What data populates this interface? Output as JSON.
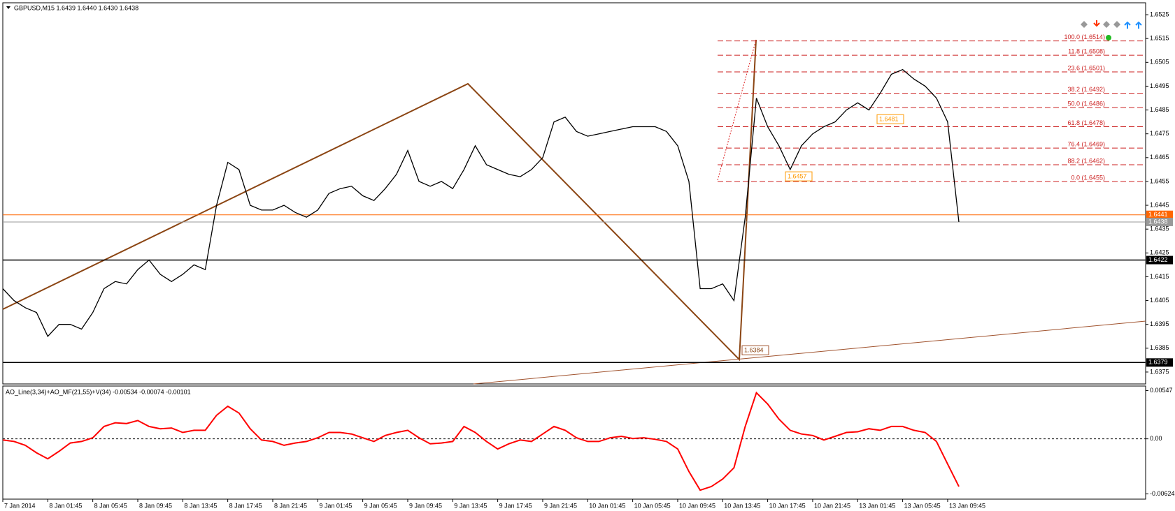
{
  "chart_data": [
    {
      "type": "line",
      "title": "GBPUSD,M15 1.6439 1.6440 1.6430 1.6438",
      "x": [
        0,
        1,
        2,
        3,
        4,
        5,
        6,
        7,
        8,
        9,
        10,
        11,
        12,
        13,
        14,
        15,
        16,
        17,
        18,
        19,
        20,
        21,
        22,
        23,
        24,
        25,
        26,
        27,
        28,
        29,
        30,
        31,
        32,
        33,
        34,
        35,
        36,
        37,
        38,
        39,
        40,
        41,
        42,
        43,
        44,
        45,
        46,
        47,
        48,
        49,
        50,
        51,
        52,
        53,
        54,
        55,
        56,
        57,
        58,
        59,
        60,
        61,
        62,
        63,
        64,
        65,
        66,
        67,
        68,
        69,
        70,
        71,
        72,
        73,
        74,
        75,
        76,
        77,
        78,
        79,
        80,
        81,
        82,
        83,
        84,
        85
      ],
      "values": [
        1.641,
        1.6405,
        1.6402,
        1.64,
        1.639,
        1.6395,
        1.6395,
        1.6393,
        1.64,
        1.641,
        1.6413,
        1.6412,
        1.6418,
        1.6422,
        1.6416,
        1.6413,
        1.6416,
        1.642,
        1.6418,
        1.6445,
        1.6463,
        1.646,
        1.6445,
        1.6443,
        1.6443,
        1.6445,
        1.6442,
        1.644,
        1.6443,
        1.645,
        1.6452,
        1.6453,
        1.6449,
        1.6447,
        1.6452,
        1.6458,
        1.6468,
        1.6455,
        1.6453,
        1.6455,
        1.6452,
        1.646,
        1.647,
        1.6462,
        1.646,
        1.6458,
        1.6457,
        1.646,
        1.6465,
        1.648,
        1.6482,
        1.6476,
        1.6474,
        1.6475,
        1.6476,
        1.6477,
        1.6478,
        1.6478,
        1.6478,
        1.6476,
        1.647,
        1.6455,
        1.641,
        1.641,
        1.6412,
        1.6405,
        1.644,
        1.649,
        1.6478,
        1.647,
        1.646,
        1.647,
        1.6475,
        1.6478,
        1.648,
        1.6485,
        1.6488,
        1.6485,
        1.6492,
        1.65,
        1.6502,
        1.6498,
        1.6495,
        1.649,
        1.648,
        1.6438
      ],
      "color": "#000000",
      "xlim": [
        0,
        101.6
      ],
      "xticks": [
        {
          "value": 0,
          "label": "7 Jan 2014"
        },
        {
          "value": 4,
          "label": "8 Jan 01:45"
        },
        {
          "value": 8,
          "label": "8 Jan 05:45"
        },
        {
          "value": 12,
          "label": "8 Jan 09:45"
        },
        {
          "value": 16,
          "label": "8 Jan 13:45"
        },
        {
          "value": 20,
          "label": "8 Jan 17:45"
        },
        {
          "value": 24,
          "label": "8 Jan 21:45"
        },
        {
          "value": 28,
          "label": "9 Jan 01:45"
        },
        {
          "value": 32,
          "label": "9 Jan 05:45"
        },
        {
          "value": 36,
          "label": "9 Jan 09:45"
        },
        {
          "value": 40,
          "label": "9 Jan 13:45"
        },
        {
          "value": 44,
          "label": "9 Jan 17:45"
        },
        {
          "value": 48,
          "label": "9 Jan 21:45"
        },
        {
          "value": 52,
          "label": "10 Jan 01:45"
        },
        {
          "value": 56,
          "label": "10 Jan 05:45"
        },
        {
          "value": 60,
          "label": "10 Jan 09:45"
        },
        {
          "value": 64,
          "label": "10 Jan 13:45"
        },
        {
          "value": 68,
          "label": "10 Jan 17:45"
        },
        {
          "value": 72,
          "label": "10 Jan 21:45"
        },
        {
          "value": 76,
          "label": "13 Jan 01:45"
        },
        {
          "value": 80,
          "label": "13 Jan 05:45"
        },
        {
          "value": 84,
          "label": "13 Jan 09:45"
        }
      ],
      "ylim": [
        1.637,
        1.653
      ],
      "yticks": [
        1.6375,
        1.6385,
        1.6395,
        1.6405,
        1.6415,
        1.6425,
        1.6435,
        1.6445,
        1.6455,
        1.6465,
        1.6475,
        1.6485,
        1.6495,
        1.6505,
        1.6515,
        1.6525
      ],
      "levels": [
        {
          "value": 1.6441,
          "color": "#ff6600"
        },
        {
          "value": 1.6438,
          "color": "#999999"
        },
        {
          "value": 1.6422,
          "color": "#000000"
        },
        {
          "value": 1.6379,
          "color": "#000000"
        }
      ],
      "fib_levels": [
        {
          "label": "100.0 (1.6514)",
          "value": 1.6514
        },
        {
          "label": "11.8 (1.6508)",
          "value": 1.6508
        },
        {
          "label": "23.6 (1.6501)",
          "value": 1.6501
        },
        {
          "label": "38.2 (1.6492)",
          "value": 1.6492
        },
        {
          "label": "50.0 (1.6486)",
          "value": 1.6486
        },
        {
          "label": "61.8 (1.6478)",
          "value": 1.6478
        },
        {
          "label": "76.4 (1.6469)",
          "value": 1.6469
        },
        {
          "label": "88.2 (1.6462)",
          "value": 1.6462
        },
        {
          "label": "0.0 (1.6455)",
          "value": 1.6455
        }
      ],
      "annotations": [
        1.6384,
        1.6457,
        1.6481
      ]
    },
    {
      "type": "line",
      "title": "AO_Line(3,34)+AO_MF(21,55)+V(34) -0.00534 -0.00074 -0.00101",
      "x": [
        0,
        1,
        2,
        3,
        4,
        5,
        6,
        7,
        8,
        9,
        10,
        11,
        12,
        13,
        14,
        15,
        16,
        17,
        18,
        19,
        20,
        21,
        22,
        23,
        24,
        25,
        26,
        27,
        28,
        29,
        30,
        31,
        32,
        33,
        34,
        35,
        36,
        37,
        38,
        39,
        40,
        41,
        42,
        43,
        44,
        45,
        46,
        47,
        48,
        49,
        50,
        51,
        52,
        53,
        54,
        55,
        56,
        57,
        58,
        59,
        60,
        61,
        62,
        63,
        64,
        65,
        66,
        67,
        68,
        69,
        70,
        71,
        72,
        73,
        74,
        75,
        76,
        77,
        78,
        79,
        80,
        81,
        82,
        83,
        84,
        85
      ],
      "values": [
        -0.00013,
        -0.0003,
        -0.00073,
        -0.00158,
        -0.00226,
        -0.00141,
        -0.00047,
        -0.0003,
        0.00012,
        0.0014,
        0.00182,
        0.00173,
        0.00207,
        0.0014,
        0.00114,
        0.00123,
        0.00072,
        0.00097,
        0.00097,
        0.00267,
        0.00369,
        0.00292,
        0.00114,
        -0.00013,
        -0.0003,
        -0.00073,
        -0.00047,
        -0.0003,
        0.00012,
        0.00072,
        0.00072,
        0.00055,
        0.00012,
        -0.0003,
        0.00038,
        0.00072,
        0.00097,
        0.00012,
        -0.00056,
        -0.00047,
        -0.0003,
        0.0014,
        0.00072,
        -0.0003,
        -0.00115,
        -0.00056,
        -0.00013,
        -0.0003,
        0.00055,
        0.0014,
        0.00097,
        0.00012,
        -0.0003,
        -0.0003,
        0.00012,
        0.00029,
        4e-05,
        0.00012,
        -5e-05,
        -0.0003,
        -0.00115,
        -0.0037,
        -0.00582,
        -0.0054,
        -0.00455,
        -0.00328,
        0.0014,
        0.00522,
        0.00394,
        0.00224,
        0.00097,
        0.00055,
        0.00038,
        -0.00013,
        0.00029,
        0.00072,
        0.0008,
        0.00114,
        0.00097,
        0.0014,
        0.0014,
        0.00097,
        0.00072,
        -0.0003,
        -0.00285,
        -0.0054
      ],
      "color": "#ff0000",
      "xlim": [
        0,
        101.6
      ],
      "ylim": [
        -0.00683,
        0.00598
      ],
      "yticks": [
        0.00547,
        {
          "value": 0,
          "label": "0.00"
        },
        -0.00624
      ]
    }
  ]
}
